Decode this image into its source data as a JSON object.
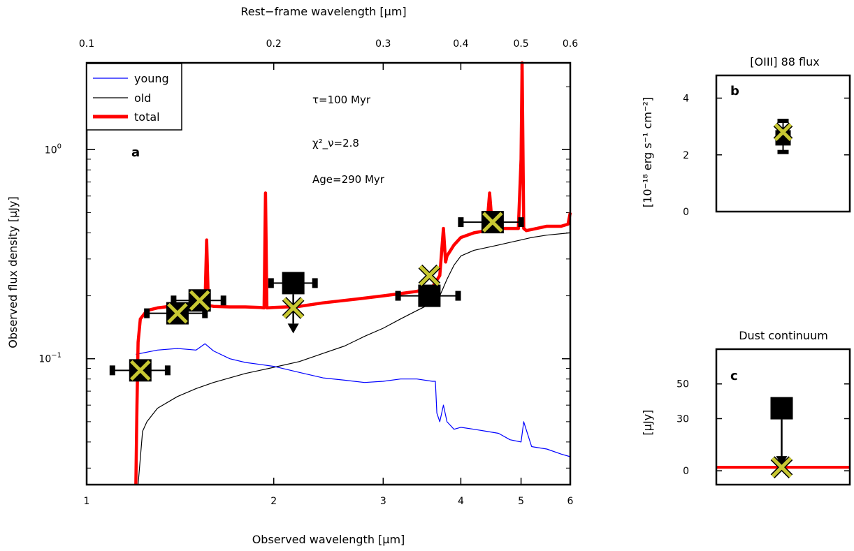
{
  "chart_data": [
    {
      "panel": "a",
      "type": "line",
      "xlabel": "Observed wavelength [μm]",
      "ylabel": "Observed flux density [μJy]",
      "top_xlabel": "Rest−frame wavelength [μm]",
      "xscale": "log",
      "yscale": "log",
      "xlim": [
        1,
        6
      ],
      "ylim": [
        0.025,
        2.6
      ],
      "x_ticks": [
        "1",
        "2",
        "3",
        "4",
        "5",
        "6"
      ],
      "top_x_ticks": [
        "0.1",
        "0.2",
        "0.3",
        "0.4",
        "0.5",
        "0.6"
      ],
      "y_ticks": [
        "10^{-1}",
        "10^{0}"
      ],
      "legend": {
        "position": "top-left",
        "entries": [
          {
            "name": "young",
            "color": "#0000ff"
          },
          {
            "name": "old",
            "color": "#000000"
          },
          {
            "name": "total",
            "color": "#ff0000"
          }
        ]
      },
      "annotations": [
        "τ=100 Myr",
        "χ²_ν=2.8",
        "Age=290 Myr"
      ],
      "series": [
        {
          "name": "young",
          "color": "#0000ff",
          "x": [
            1.2,
            1.3,
            1.4,
            1.5,
            1.55,
            1.6,
            1.7,
            1.8,
            1.9,
            2.0,
            2.2,
            2.4,
            2.6,
            2.8,
            3.0,
            3.2,
            3.4,
            3.6,
            3.64,
            3.66,
            3.7,
            3.75,
            3.8,
            3.9,
            4.0,
            4.2,
            4.4,
            4.6,
            4.8,
            5.0,
            5.05,
            5.2,
            5.5,
            5.8,
            6.0
          ],
          "y": [
            0.105,
            0.11,
            0.112,
            0.11,
            0.118,
            0.109,
            0.1,
            0.096,
            0.094,
            0.092,
            0.086,
            0.081,
            0.079,
            0.077,
            0.078,
            0.08,
            0.08,
            0.078,
            0.078,
            0.055,
            0.05,
            0.06,
            0.05,
            0.046,
            0.047,
            0.046,
            0.045,
            0.044,
            0.041,
            0.04,
            0.05,
            0.038,
            0.037,
            0.035,
            0.034
          ]
        },
        {
          "name": "old",
          "color": "#000000",
          "x": [
            1.21,
            1.23,
            1.25,
            1.3,
            1.4,
            1.5,
            1.6,
            1.7,
            1.8,
            1.9,
            2.0,
            2.2,
            2.4,
            2.6,
            2.8,
            3.0,
            3.2,
            3.4,
            3.6,
            3.7,
            3.8,
            3.9,
            4.0,
            4.2,
            4.4,
            4.6,
            4.8,
            5.0,
            5.2,
            5.5,
            6.0
          ],
          "y": [
            0.025,
            0.045,
            0.05,
            0.058,
            0.066,
            0.072,
            0.077,
            0.081,
            0.085,
            0.088,
            0.091,
            0.097,
            0.106,
            0.115,
            0.128,
            0.14,
            0.155,
            0.17,
            0.185,
            0.2,
            0.24,
            0.28,
            0.31,
            0.33,
            0.34,
            0.35,
            0.36,
            0.37,
            0.38,
            0.39,
            0.4
          ]
        },
        {
          "name": "total",
          "color": "#ff0000",
          "x": [
            1.2,
            1.205,
            1.21,
            1.22,
            1.25,
            1.3,
            1.4,
            1.5,
            1.55,
            1.56,
            1.57,
            1.6,
            1.7,
            1.8,
            1.9,
            1.93,
            1.94,
            1.95,
            2.0,
            2.2,
            2.4,
            2.6,
            2.8,
            3.0,
            3.2,
            3.4,
            3.6,
            3.7,
            3.75,
            3.78,
            3.8,
            3.9,
            4.0,
            4.2,
            4.4,
            4.45,
            4.5,
            4.6,
            4.8,
            4.95,
            5.0,
            5.02,
            5.05,
            5.1,
            5.3,
            5.5,
            5.8,
            5.95,
            6.0
          ],
          "y": [
            0.025,
            0.06,
            0.12,
            0.155,
            0.17,
            0.175,
            0.18,
            0.18,
            0.18,
            0.37,
            0.18,
            0.178,
            0.177,
            0.177,
            0.176,
            0.175,
            0.62,
            0.175,
            0.176,
            0.178,
            0.185,
            0.19,
            0.195,
            0.2,
            0.205,
            0.21,
            0.22,
            0.25,
            0.42,
            0.29,
            0.31,
            0.35,
            0.38,
            0.4,
            0.41,
            0.62,
            0.41,
            0.42,
            0.42,
            0.42,
            0.9,
            2.6,
            0.42,
            0.41,
            0.42,
            0.43,
            0.43,
            0.44,
            0.5
          ]
        }
      ],
      "observed_points": [
        {
          "x": 1.22,
          "y": 0.088,
          "xerr": [
            1.1,
            1.35
          ],
          "upper_limit": false
        },
        {
          "x": 1.4,
          "y": 0.165,
          "xerr": [
            1.25,
            1.55
          ],
          "upper_limit": false
        },
        {
          "x": 1.52,
          "y": 0.19,
          "xerr": [
            1.38,
            1.66
          ],
          "upper_limit": false
        },
        {
          "x": 2.15,
          "y": 0.23,
          "xerr": [
            1.98,
            2.33
          ],
          "upper_limit": true
        },
        {
          "x": 3.56,
          "y": 0.2,
          "xerr": [
            3.17,
            3.96
          ],
          "upper_limit": false
        },
        {
          "x": 4.5,
          "y": 0.45,
          "xerr": [
            4.0,
            5.0
          ],
          "upper_limit": false
        }
      ],
      "model_points": [
        {
          "x": 1.22,
          "y": 0.088
        },
        {
          "x": 1.4,
          "y": 0.165
        },
        {
          "x": 1.52,
          "y": 0.19
        },
        {
          "x": 2.15,
          "y": 0.175
        },
        {
          "x": 3.56,
          "y": 0.25
        },
        {
          "x": 4.5,
          "y": 0.45
        }
      ]
    },
    {
      "panel": "b",
      "type": "scatter",
      "title": "[OIII] 88 flux",
      "ylabel": "[10⁻¹⁸ erg s⁻¹ cm⁻²]",
      "y_ticks": [
        "0",
        "2",
        "4"
      ],
      "ylim": [
        0,
        4.8
      ],
      "observed": {
        "y": 2.6,
        "yerr": [
          2.1,
          3.2
        ]
      },
      "model": {
        "y": 2.8
      }
    },
    {
      "panel": "c",
      "type": "scatter",
      "title": "Dust continuum",
      "ylabel": "[μJy]",
      "y_ticks": [
        "0",
        "30",
        "50"
      ],
      "ylim": [
        -8,
        70
      ],
      "observed": {
        "y": 36,
        "upper_limit": true
      },
      "model": {
        "y": 2
      },
      "model_line": {
        "y": 2,
        "color": "#ff0000"
      }
    }
  ]
}
